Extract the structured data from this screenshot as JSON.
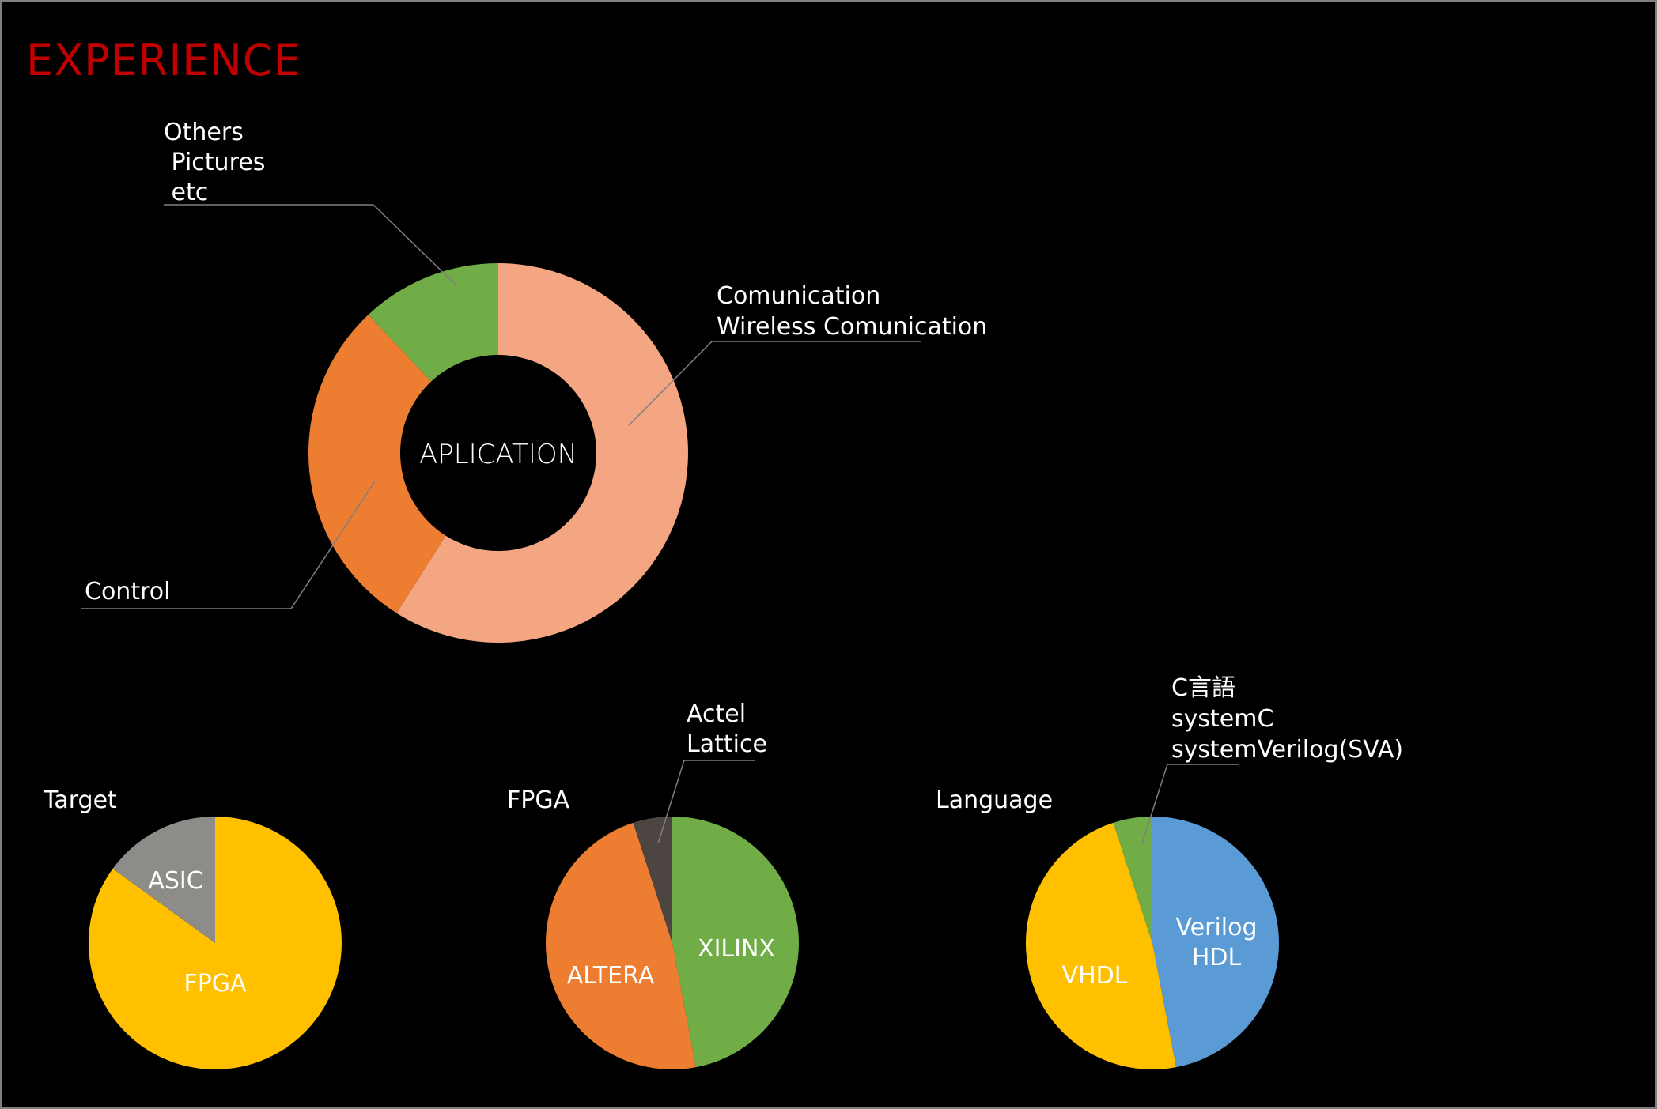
{
  "page": {
    "title": "EXPERIENCE",
    "title_color": "#c00000",
    "background": "#000000",
    "text_color": "#ffffff",
    "leader_color": "#7f7f7f"
  },
  "chart_data": [
    {
      "type": "pie",
      "variant": "donut",
      "center_label": "APLICATION",
      "title": "",
      "slices": [
        {
          "label_lines": [
            "Comunication",
            "Wireless Comunication"
          ],
          "value": 59,
          "color": "#f4a582"
        },
        {
          "label_lines": [
            "Control"
          ],
          "value": 29,
          "color": "#ed7d31"
        },
        {
          "label_lines": [
            "Others",
            " Pictures",
            " etc"
          ],
          "value": 12,
          "color": "#70ad47"
        }
      ]
    },
    {
      "type": "pie",
      "title": "Target",
      "slices": [
        {
          "label_lines": [
            "FPGA"
          ],
          "value": 85,
          "color": "#ffc000"
        },
        {
          "label_lines": [
            "ASIC"
          ],
          "value": 15,
          "color": "#8e8c89"
        }
      ]
    },
    {
      "type": "pie",
      "title": "FPGA",
      "slices": [
        {
          "label_lines": [
            "XILINX"
          ],
          "value": 47,
          "color": "#70ad47"
        },
        {
          "label_lines": [
            "ALTERA"
          ],
          "value": 48,
          "color": "#ed7d31"
        },
        {
          "label_lines": [
            "Actel",
            "Lattice"
          ],
          "value": 5,
          "color": "#4d4542"
        }
      ]
    },
    {
      "type": "pie",
      "title": "Language",
      "slices": [
        {
          "label_lines": [
            "Verilog",
            "HDL"
          ],
          "value": 47,
          "color": "#5b9bd5"
        },
        {
          "label_lines": [
            "VHDL"
          ],
          "value": 48,
          "color": "#ffc000"
        },
        {
          "label_lines": [
            "C言語",
            "systemC",
            "systemVerilog(SVA)"
          ],
          "value": 5,
          "color": "#70ad47"
        }
      ]
    }
  ]
}
